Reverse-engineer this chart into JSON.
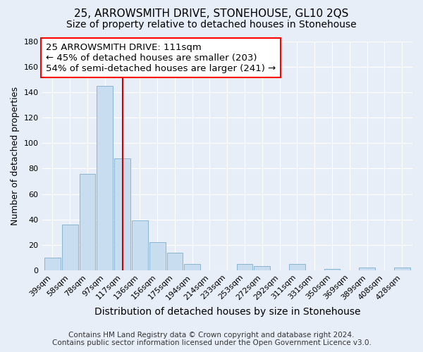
{
  "title": "25, ARROWSMITH DRIVE, STONEHOUSE, GL10 2QS",
  "subtitle": "Size of property relative to detached houses in Stonehouse",
  "xlabel": "Distribution of detached houses by size in Stonehouse",
  "ylabel": "Number of detached properties",
  "bar_labels": [
    "39sqm",
    "58sqm",
    "78sqm",
    "97sqm",
    "117sqm",
    "136sqm",
    "156sqm",
    "175sqm",
    "194sqm",
    "214sqm",
    "233sqm",
    "253sqm",
    "272sqm",
    "292sqm",
    "311sqm",
    "331sqm",
    "350sqm",
    "369sqm",
    "389sqm",
    "408sqm",
    "428sqm"
  ],
  "bar_values": [
    10,
    36,
    76,
    145,
    88,
    39,
    22,
    14,
    5,
    0,
    0,
    5,
    3,
    0,
    5,
    0,
    1,
    0,
    2,
    0,
    2
  ],
  "bar_color": "#c8ddf0",
  "bar_edge_color": "#8ab4d4",
  "vline_color": "#cc0000",
  "ylim": [
    0,
    180
  ],
  "yticks": [
    0,
    20,
    40,
    60,
    80,
    100,
    120,
    140,
    160,
    180
  ],
  "annotation_box_text_line1": "25 ARROWSMITH DRIVE: 111sqm",
  "annotation_box_text_line2": "← 45% of detached houses are smaller (203)",
  "annotation_box_text_line3": "54% of semi-detached houses are larger (241) →",
  "footer_line1": "Contains HM Land Registry data © Crown copyright and database right 2024.",
  "footer_line2": "Contains public sector information licensed under the Open Government Licence v3.0.",
  "background_color": "#e8eef8",
  "plot_bg_color": "#e8eef8",
  "grid_color": "#ffffff",
  "title_fontsize": 11,
  "subtitle_fontsize": 10,
  "xlabel_fontsize": 10,
  "ylabel_fontsize": 9,
  "tick_fontsize": 8,
  "annotation_fontsize": 9.5,
  "footer_fontsize": 7.5
}
